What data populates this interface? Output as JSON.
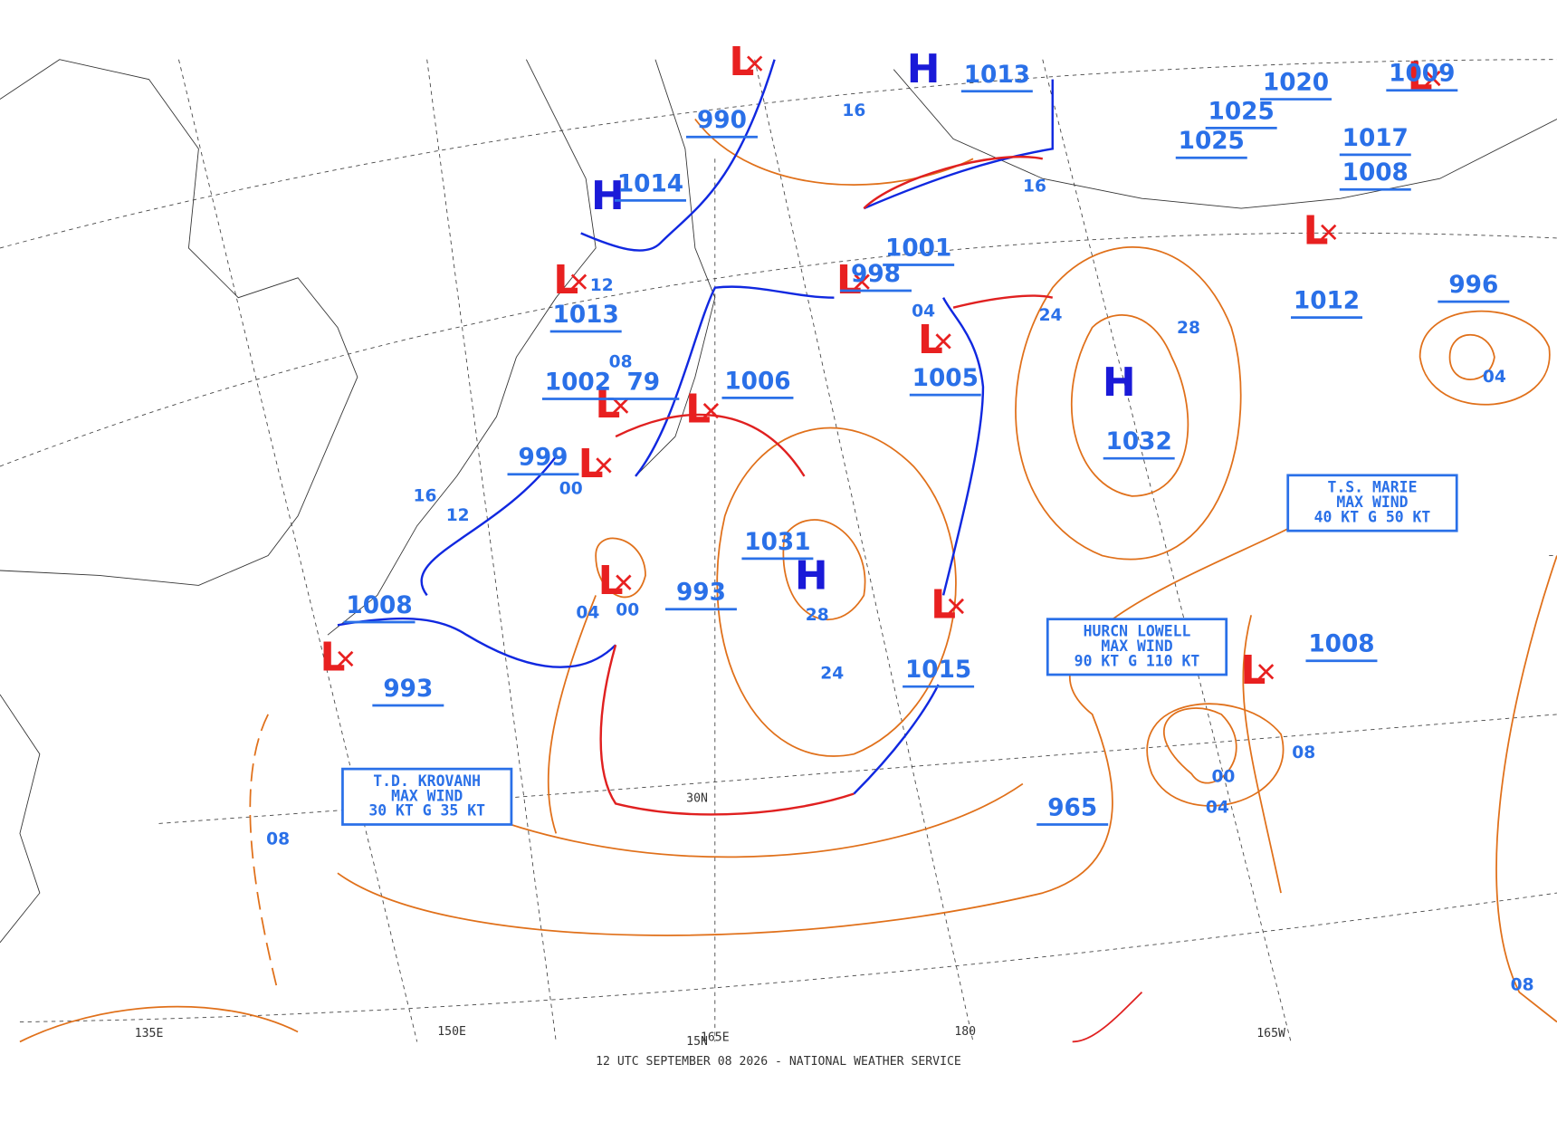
{
  "footer": "12 UTC SEPTEMBER 08 2026 - NATIONAL WEATHER SERVICE",
  "longitude_labels": [
    "135E",
    "150E",
    "165E",
    "180",
    "165W"
  ],
  "latitude_labels": [
    "30N",
    "15N"
  ],
  "center_symbols": [
    "H",
    "H",
    "H",
    "H",
    "L",
    "L",
    "L",
    "L",
    "L",
    "L",
    "L",
    "L",
    "L",
    "L",
    "L",
    "L",
    "L"
  ],
  "pressure_labels": [
    "990",
    "1014",
    "1013",
    "1002",
    "79",
    "1006",
    "999",
    "1031",
    "993",
    "1008",
    "993",
    "1005",
    "1001",
    "998",
    "1013",
    "1032",
    "1015",
    "965",
    "1008",
    "1012",
    "996",
    "1020",
    "1025",
    "1025",
    "1017",
    "1008",
    "1009"
  ],
  "isobar_labels": [
    "16",
    "16",
    "12",
    "04",
    "24",
    "28",
    "16",
    "12",
    "00",
    "04",
    "00",
    "28",
    "24",
    "04",
    "08",
    "04",
    "00",
    "08",
    "08",
    "08"
  ],
  "storm_boxes": [
    {
      "lines": [
        "T.D. KROVANH",
        "MAX WIND",
        "30 KT G 35 KT"
      ]
    },
    {
      "lines": [
        "HURCN LOWELL",
        "MAX WIND",
        "90 KT G 110 KT"
      ]
    },
    {
      "lines": [
        "T.S. MARIE",
        "MAX WIND",
        "40 KT G 50 KT"
      ]
    }
  ]
}
